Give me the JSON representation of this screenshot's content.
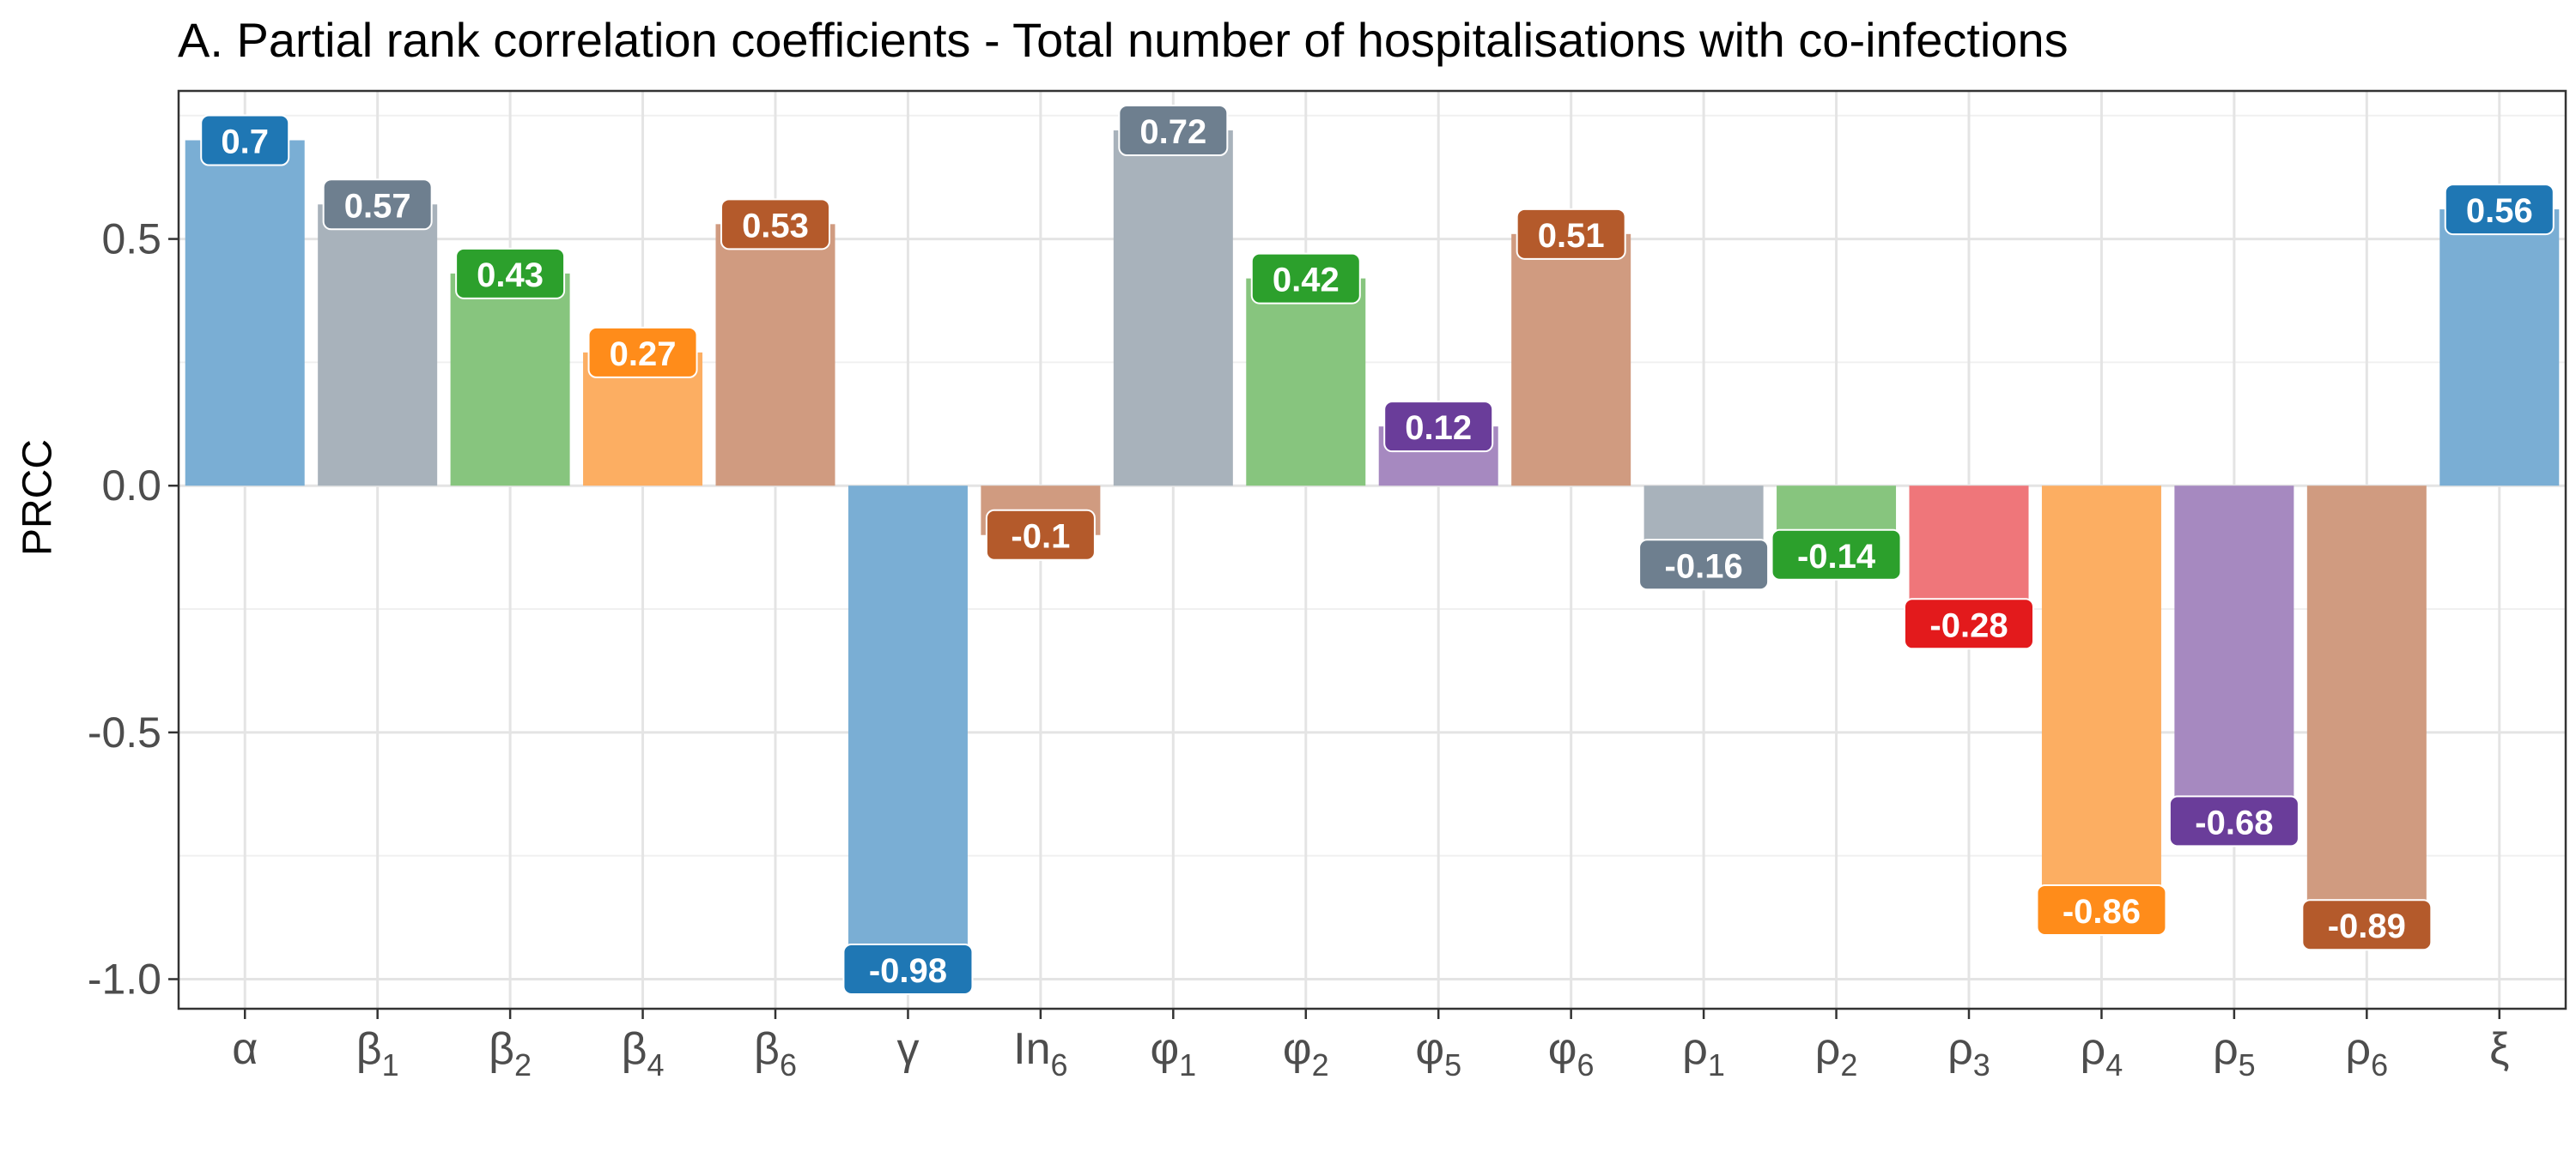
{
  "chart_data": {
    "type": "bar",
    "title": "A. Partial rank correlation coefficients - Total number of hospitalisations with co-infections",
    "xlabel": "",
    "ylabel": "PRCC",
    "ylim": [
      -1.06,
      0.8
    ],
    "yticks": [
      "0.5",
      "0.0",
      "-0.5",
      "-1.0"
    ],
    "ytick_values": [
      0.5,
      0.0,
      -0.5,
      -1.0
    ],
    "grid": true,
    "legend": "none",
    "categories": [
      {
        "base": "α",
        "sub": ""
      },
      {
        "base": "β",
        "sub": "1"
      },
      {
        "base": "β",
        "sub": "2"
      },
      {
        "base": "β",
        "sub": "4"
      },
      {
        "base": "β",
        "sub": "6"
      },
      {
        "base": "γ",
        "sub": ""
      },
      {
        "base": "In",
        "sub": "6"
      },
      {
        "base": "φ",
        "sub": "1"
      },
      {
        "base": "φ",
        "sub": "2"
      },
      {
        "base": "φ",
        "sub": "5"
      },
      {
        "base": "φ",
        "sub": "6"
      },
      {
        "base": "ρ",
        "sub": "1"
      },
      {
        "base": "ρ",
        "sub": "2"
      },
      {
        "base": "ρ",
        "sub": "3"
      },
      {
        "base": "ρ",
        "sub": "4"
      },
      {
        "base": "ρ",
        "sub": "5"
      },
      {
        "base": "ρ",
        "sub": "6"
      },
      {
        "base": "ξ",
        "sub": ""
      }
    ],
    "values": [
      0.7,
      0.57,
      0.43,
      0.27,
      0.53,
      -0.98,
      -0.1,
      0.72,
      0.42,
      0.12,
      0.51,
      -0.16,
      -0.14,
      -0.28,
      -0.86,
      -0.68,
      -0.89,
      0.56
    ],
    "data_labels": [
      "0.7",
      "0.57",
      "0.43",
      "0.27",
      "0.53",
      "-0.98",
      "-0.1",
      "0.72",
      "0.42",
      "0.12",
      "0.51",
      "-0.16",
      "-0.14",
      "-0.28",
      "-0.86",
      "-0.68",
      "-0.89",
      "0.56"
    ],
    "bar_colors": [
      "#7aaed4",
      "#a8b2bb",
      "#87c57e",
      "#fcae62",
      "#d09b80",
      "#7aaed4",
      "#d09b80",
      "#a8b2bb",
      "#87c57e",
      "#a689c0",
      "#d09b80",
      "#a8b2bb",
      "#87c57e",
      "#ef767a",
      "#fcae62",
      "#a689c0",
      "#d09b80",
      "#7aaed4"
    ],
    "label_colors": [
      "#1f77b4",
      "#6e7f8f",
      "#2ca02c",
      "#ff8c1a",
      "#b45a2b",
      "#1f77b4",
      "#b45a2b",
      "#6e7f8f",
      "#2ca02c",
      "#6a3d9a",
      "#b45a2b",
      "#6e7f8f",
      "#2ca02c",
      "#e31a1c",
      "#ff8c1a",
      "#6a3d9a",
      "#b45a2b",
      "#1f77b4"
    ]
  }
}
